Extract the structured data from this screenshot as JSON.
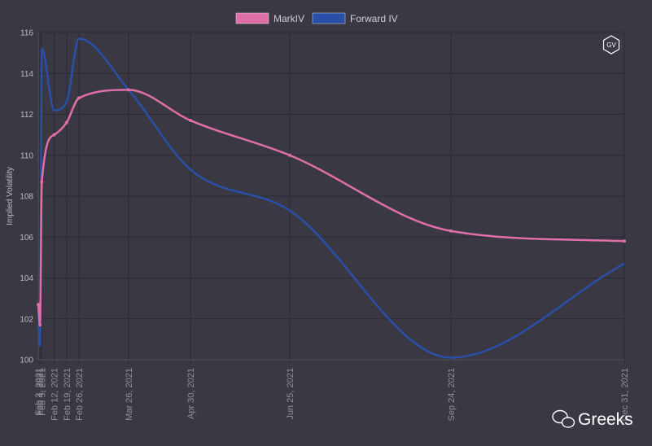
{
  "chart_data": {
    "type": "line",
    "ylabel": "Implied Volatility",
    "ylim": [
      100,
      116
    ],
    "y_ticks": [
      100,
      102,
      104,
      106,
      108,
      110,
      112,
      114,
      116
    ],
    "legend_position": "top-center",
    "grid": true,
    "x_labels": [
      "Feb 3, 2021",
      "Feb 4, 2021",
      "Feb 5, 2021",
      "Feb 12, 2021",
      "Feb 19, 2021",
      "Feb 26, 2021",
      "Mar 26, 2021",
      "Apr 30, 2021",
      "Jun 25, 2021",
      "Sep 24, 2021",
      "Dec 31, 2021"
    ],
    "x_days": [
      0,
      1,
      2,
      9,
      16,
      23,
      51,
      86,
      142,
      233,
      331
    ],
    "series": [
      {
        "name": "MarkIV",
        "color": "#e06fa8",
        "values": [
          102.7,
          101.7,
          108.7,
          111.0,
          111.6,
          112.8,
          113.2,
          111.7,
          110.0,
          106.3,
          105.8
        ],
        "show_points": true
      },
      {
        "name": "Forward IV",
        "color": "#2a4fa8",
        "values": [
          102.7,
          100.7,
          115.2,
          112.2,
          112.6,
          115.7,
          113.2,
          109.3,
          107.3,
          100.1,
          104.7
        ],
        "show_points": false
      }
    ]
  },
  "badge_text": "GV",
  "watermark_text": "Greeks"
}
